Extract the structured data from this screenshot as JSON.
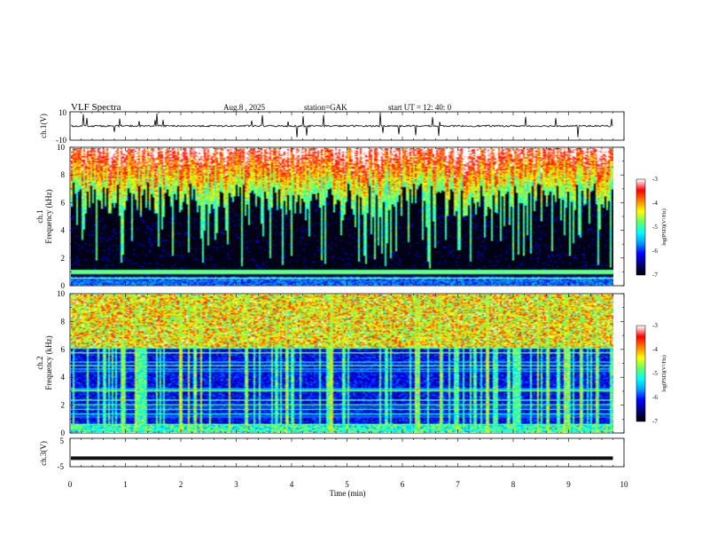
{
  "header": {
    "title": "VLF  Spectra",
    "date": "Aug.8  , 2025",
    "station": "station=GAK",
    "start_time": "start  UT  =   12: 40: 0"
  },
  "panels": {
    "ch1_label": "ch.1(V)",
    "spec1_label_a": "ch.1",
    "spec1_label_b": "Frequency  (kHz)",
    "spec2_label_a": "ch.2",
    "spec2_label_b": "Frequency  (kHz)",
    "ch3_label": "ch.3(V)",
    "colorbar_label": "log(PSD)(V²/Hz)"
  },
  "chart_data": {
    "type": "heatmap",
    "xlabel": "Time  (min)",
    "xlim": [
      0,
      10
    ],
    "x_ticks": [
      "0",
      "1",
      "2",
      "3",
      "4",
      "5",
      "6",
      "7",
      "8",
      "9",
      "10"
    ],
    "ch1": {
      "ylim": [
        -10,
        10
      ],
      "y_ticks": [
        "10",
        "-10"
      ],
      "baseline": 0
    },
    "spectrogram_ch1": {
      "ylim": [
        0,
        10
      ],
      "y_ticks": [
        "0",
        "2",
        "4",
        "6",
        "8",
        "10"
      ],
      "data_end_min": 9.8
    },
    "spectrogram_ch2": {
      "ylim": [
        0,
        10
      ],
      "y_ticks": [
        "0",
        "2",
        "4",
        "6",
        "8",
        "10"
      ],
      "data_end_min": 9.8
    },
    "ch3": {
      "ylim": [
        -5,
        5
      ],
      "y_ticks": [
        "5",
        "-5"
      ],
      "baseline": -2
    },
    "colorbar": {
      "range": [
        -7,
        -3
      ],
      "ticks": [
        "-3",
        "-4",
        "-5",
        "-6",
        "-7"
      ],
      "colors": [
        "#000000",
        "#00007f",
        "#0000ff",
        "#00a0ff",
        "#00ffff",
        "#66ff66",
        "#ffff00",
        "#ff8000",
        "#ff0000",
        "#ffffff"
      ]
    }
  }
}
